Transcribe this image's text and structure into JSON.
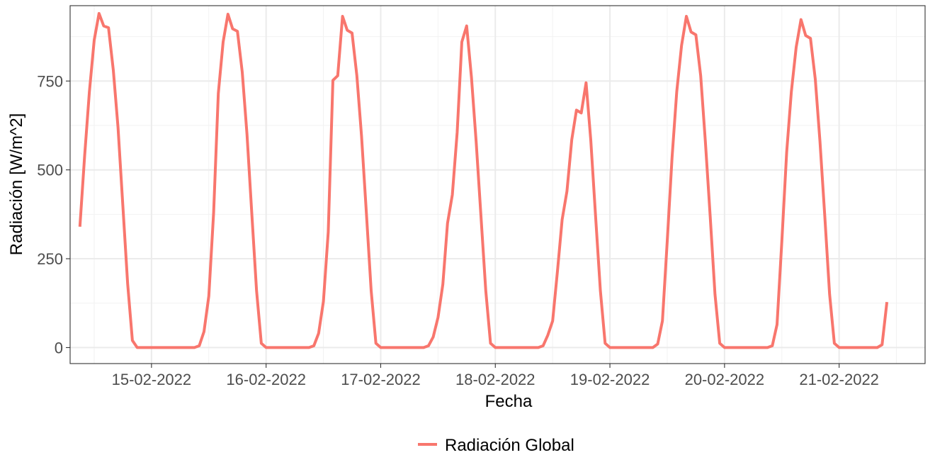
{
  "chart_data": {
    "type": "line",
    "title": "",
    "xlabel": "Fecha",
    "ylabel": "Radiación [W/m^2]",
    "ylim": [
      -45,
      962
    ],
    "x_range_days": [
      14.29,
      21.75
    ],
    "grid": true,
    "legend_position": "bottom",
    "x_ticks": [
      {
        "day": 15,
        "label": "15-02-2022"
      },
      {
        "day": 16,
        "label": "16-02-2022"
      },
      {
        "day": 17,
        "label": "17-02-2022"
      },
      {
        "day": 18,
        "label": "18-02-2022"
      },
      {
        "day": 19,
        "label": "19-02-2022"
      },
      {
        "day": 20,
        "label": "20-02-2022"
      },
      {
        "day": 21,
        "label": "21-02-2022"
      }
    ],
    "y_ticks": [
      0,
      250,
      500,
      750
    ],
    "series": [
      {
        "name": "Radiación Global",
        "color": "#f8766d",
        "points": [
          [
            14.375,
            340
          ],
          [
            14.417,
            540
          ],
          [
            14.458,
            720
          ],
          [
            14.5,
            865
          ],
          [
            14.542,
            940
          ],
          [
            14.583,
            905
          ],
          [
            14.625,
            900
          ],
          [
            14.667,
            780
          ],
          [
            14.708,
            620
          ],
          [
            14.75,
            400
          ],
          [
            14.792,
            180
          ],
          [
            14.833,
            20
          ],
          [
            14.875,
            0
          ],
          [
            15.0,
            0
          ],
          [
            15.2,
            0
          ],
          [
            15.375,
            0
          ],
          [
            15.417,
            5
          ],
          [
            15.458,
            45
          ],
          [
            15.5,
            145
          ],
          [
            15.542,
            380
          ],
          [
            15.583,
            715
          ],
          [
            15.625,
            860
          ],
          [
            15.667,
            938
          ],
          [
            15.708,
            897
          ],
          [
            15.75,
            890
          ],
          [
            15.792,
            775
          ],
          [
            15.833,
            600
          ],
          [
            15.875,
            380
          ],
          [
            15.917,
            160
          ],
          [
            15.958,
            12
          ],
          [
            16.0,
            0
          ],
          [
            16.2,
            0
          ],
          [
            16.375,
            0
          ],
          [
            16.417,
            5
          ],
          [
            16.458,
            40
          ],
          [
            16.5,
            130
          ],
          [
            16.542,
            325
          ],
          [
            16.583,
            752
          ],
          [
            16.625,
            765
          ],
          [
            16.667,
            932
          ],
          [
            16.708,
            893
          ],
          [
            16.75,
            885
          ],
          [
            16.792,
            765
          ],
          [
            16.833,
            595
          ],
          [
            16.875,
            380
          ],
          [
            16.917,
            160
          ],
          [
            16.958,
            12
          ],
          [
            17.0,
            0
          ],
          [
            17.2,
            0
          ],
          [
            17.375,
            0
          ],
          [
            17.417,
            5
          ],
          [
            17.458,
            30
          ],
          [
            17.5,
            85
          ],
          [
            17.542,
            178
          ],
          [
            17.583,
            350
          ],
          [
            17.625,
            430
          ],
          [
            17.667,
            605
          ],
          [
            17.708,
            860
          ],
          [
            17.75,
            905
          ],
          [
            17.792,
            760
          ],
          [
            17.833,
            580
          ],
          [
            17.875,
            370
          ],
          [
            17.917,
            160
          ],
          [
            17.958,
            12
          ],
          [
            18.0,
            0
          ],
          [
            18.2,
            0
          ],
          [
            18.375,
            0
          ],
          [
            18.417,
            5
          ],
          [
            18.458,
            35
          ],
          [
            18.5,
            75
          ],
          [
            18.542,
            215
          ],
          [
            18.583,
            360
          ],
          [
            18.625,
            440
          ],
          [
            18.667,
            585
          ],
          [
            18.708,
            668
          ],
          [
            18.75,
            660
          ],
          [
            18.792,
            745
          ],
          [
            18.833,
            585
          ],
          [
            18.875,
            370
          ],
          [
            18.917,
            160
          ],
          [
            18.958,
            12
          ],
          [
            19.0,
            0
          ],
          [
            19.2,
            0
          ],
          [
            19.375,
            0
          ],
          [
            19.417,
            10
          ],
          [
            19.458,
            75
          ],
          [
            19.5,
            300
          ],
          [
            19.542,
            535
          ],
          [
            19.583,
            720
          ],
          [
            19.625,
            850
          ],
          [
            19.667,
            932
          ],
          [
            19.708,
            888
          ],
          [
            19.75,
            880
          ],
          [
            19.792,
            765
          ],
          [
            19.833,
            580
          ],
          [
            19.875,
            370
          ],
          [
            19.917,
            150
          ],
          [
            19.958,
            12
          ],
          [
            20.0,
            0
          ],
          [
            20.2,
            0
          ],
          [
            20.375,
            0
          ],
          [
            20.417,
            5
          ],
          [
            20.458,
            65
          ],
          [
            20.5,
            300
          ],
          [
            20.542,
            550
          ],
          [
            20.583,
            720
          ],
          [
            20.625,
            845
          ],
          [
            20.667,
            923
          ],
          [
            20.708,
            878
          ],
          [
            20.75,
            870
          ],
          [
            20.792,
            755
          ],
          [
            20.833,
            580
          ],
          [
            20.875,
            370
          ],
          [
            20.917,
            150
          ],
          [
            20.958,
            12
          ],
          [
            21.0,
            0
          ],
          [
            21.2,
            0
          ],
          [
            21.333,
            0
          ],
          [
            21.375,
            8
          ],
          [
            21.417,
            128
          ]
        ]
      }
    ]
  }
}
